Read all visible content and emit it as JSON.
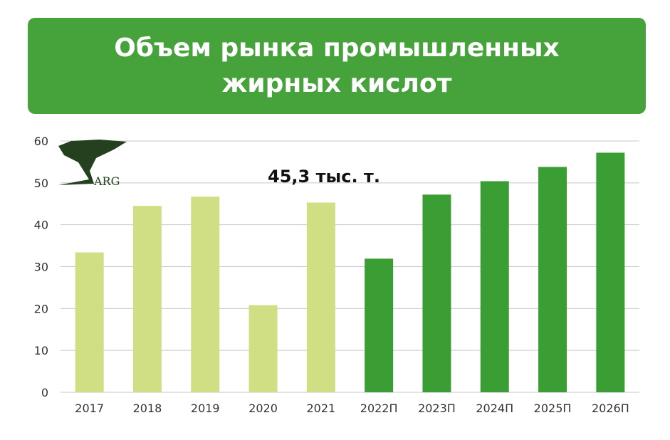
{
  "chart_data": {
    "type": "bar",
    "title": "Объем рынка промышленных жирных кислот",
    "annotation": "45,3 тыс. т.",
    "categories": [
      "2017",
      "2018",
      "2019",
      "2020",
      "2021",
      "2022П",
      "2023П",
      "2024П",
      "2025П",
      "2026П"
    ],
    "values": [
      33.4,
      44.5,
      46.7,
      20.8,
      45.3,
      31.9,
      47.2,
      50.4,
      53.8,
      57.2
    ],
    "ylim": [
      0,
      60
    ],
    "yticks": [
      0,
      10,
      20,
      30,
      40,
      50,
      60
    ],
    "grid": true,
    "colors": {
      "actual": "#d0de84",
      "forecast": "#3a9e35",
      "banner": "#46a23a",
      "logo": "#24401f"
    },
    "forecast_start_index": 5,
    "logo_text": "ARG"
  }
}
